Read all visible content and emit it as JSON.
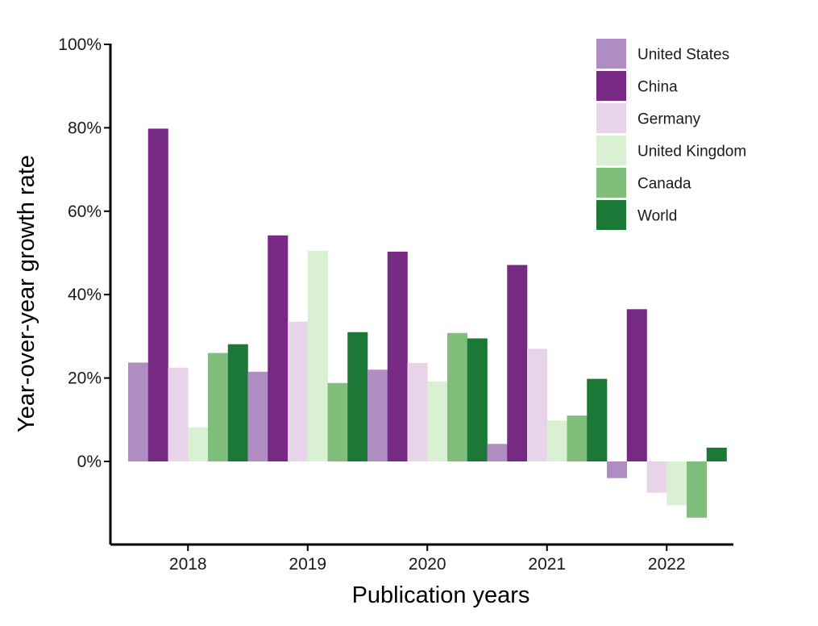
{
  "chart_data": {
    "type": "bar",
    "title": "",
    "xlabel": "Publication years",
    "ylabel": "Year-over-year growth rate",
    "ylim": [
      -20,
      100
    ],
    "yticks": [
      0,
      20,
      40,
      60,
      80,
      100
    ],
    "ytick_labels": [
      "0%",
      "20%",
      "40%",
      "60%",
      "80%",
      "100%"
    ],
    "categories": [
      "2018",
      "2019",
      "2020",
      "2021",
      "2022"
    ],
    "series": [
      {
        "name": "United States",
        "color": "#af8dc3",
        "values": [
          23.7,
          21.5,
          22.0,
          4.2,
          -4.0
        ]
      },
      {
        "name": "China",
        "color": "#762a83",
        "values": [
          79.8,
          54.2,
          50.3,
          47.1,
          36.5
        ]
      },
      {
        "name": "Germany",
        "color": "#e7d4e8",
        "values": [
          22.5,
          33.5,
          23.6,
          27.0,
          -7.5
        ]
      },
      {
        "name": "United Kingdom",
        "color": "#d9f0d3",
        "values": [
          8.2,
          50.5,
          19.2,
          9.8,
          -10.5
        ]
      },
      {
        "name": "Canada",
        "color": "#7fbf7b",
        "values": [
          26.0,
          18.8,
          30.8,
          11.0,
          -13.5
        ]
      },
      {
        "name": "World",
        "color": "#1b7837",
        "values": [
          28.1,
          31.0,
          29.5,
          19.8,
          3.3
        ]
      }
    ],
    "legend_position": "top-right",
    "grid": false
  }
}
